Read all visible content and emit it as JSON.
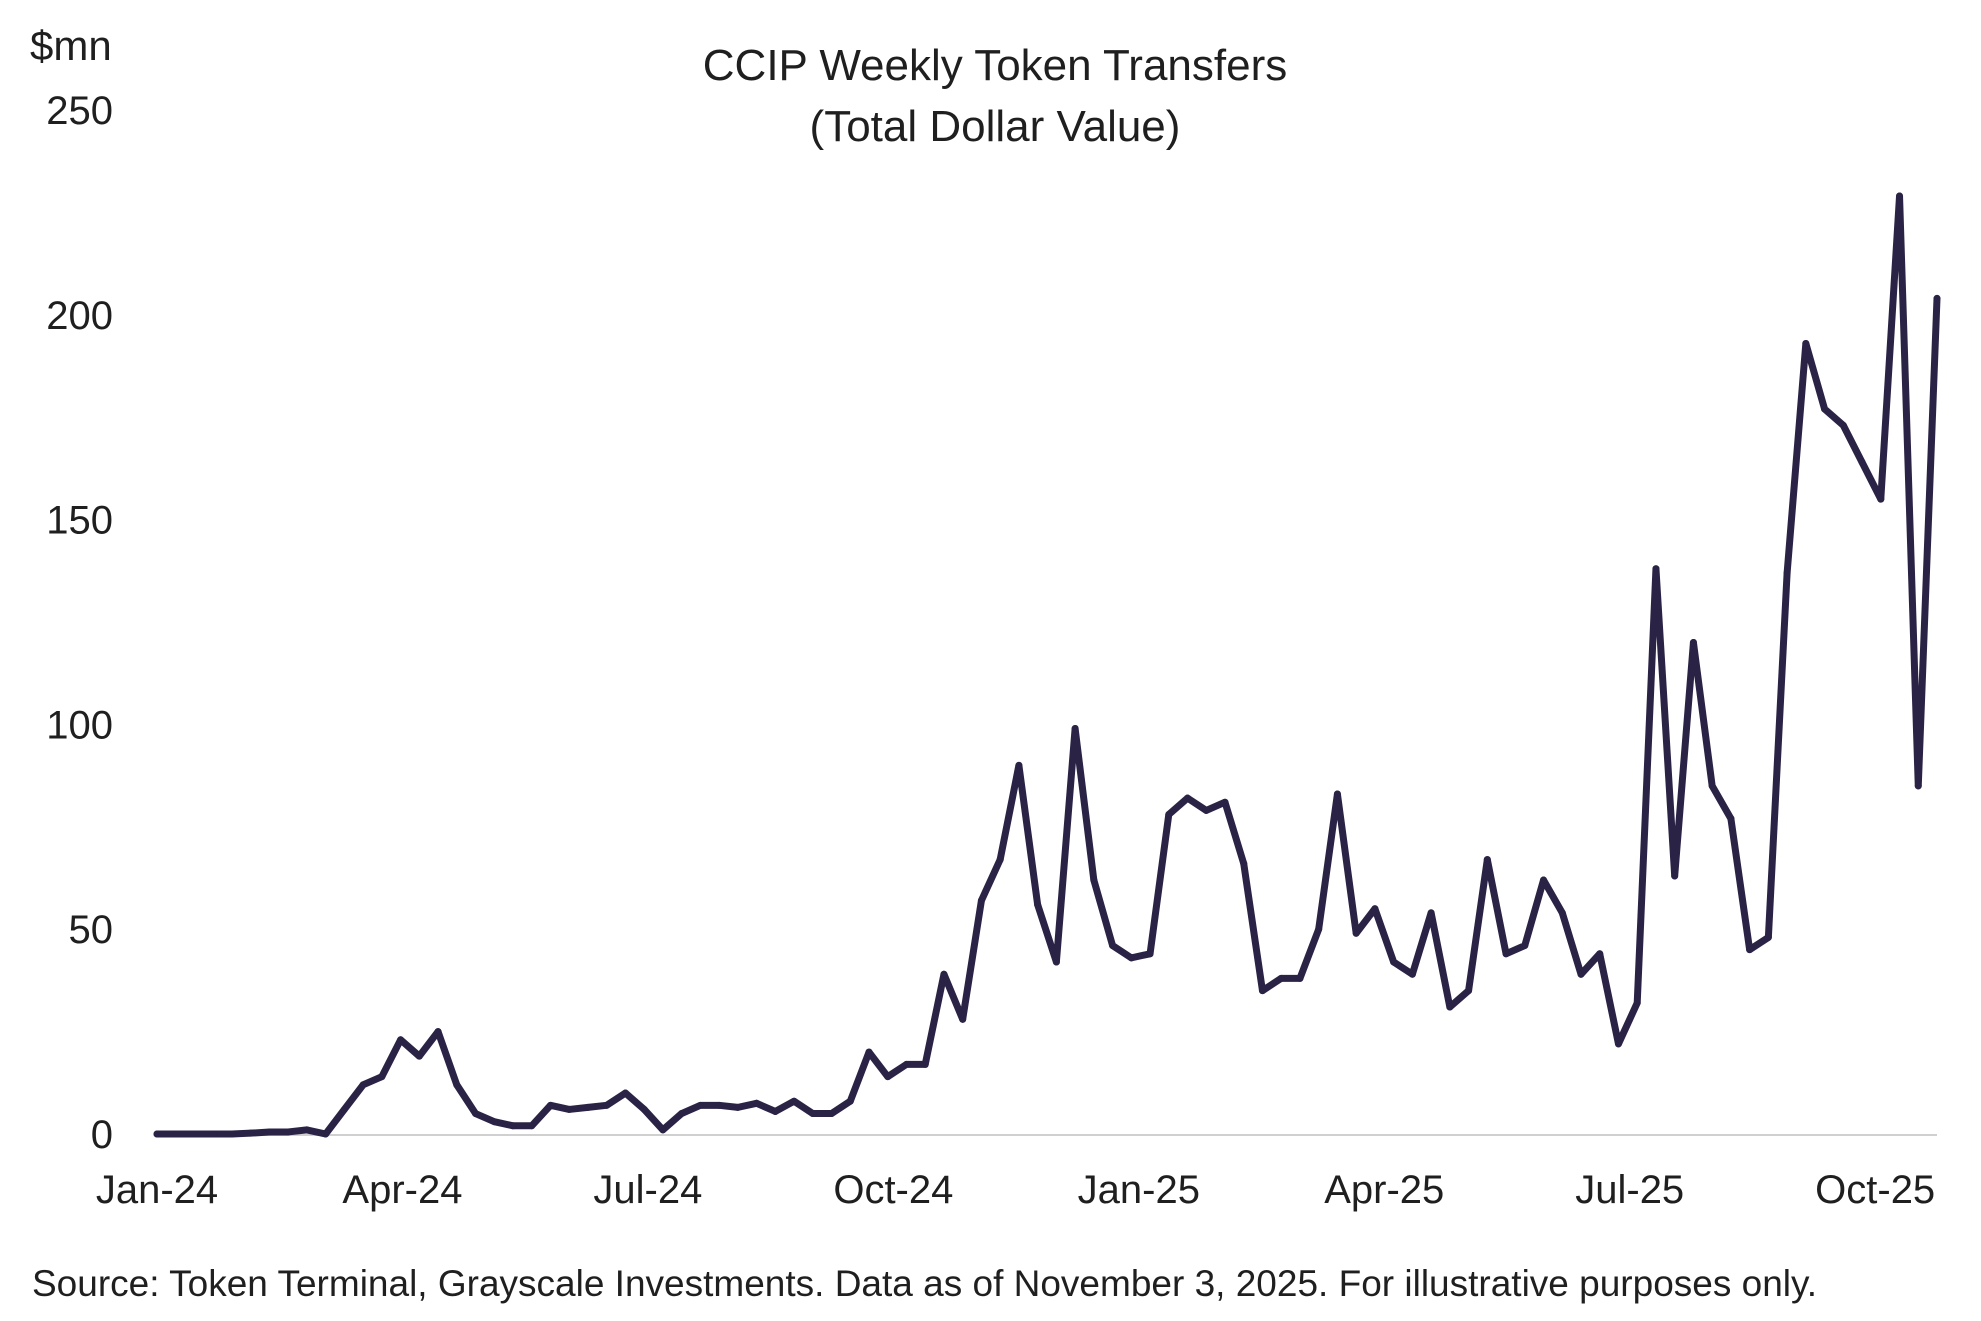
{
  "chart_data": {
    "type": "line",
    "title": "CCIP Weekly Token Transfers",
    "subtitle": "(Total Dollar Value)",
    "y_unit_label": "$mn",
    "xlabel": "",
    "ylabel": "",
    "ylim": [
      0,
      250
    ],
    "y_ticks": [
      0,
      50,
      100,
      150,
      200,
      250
    ],
    "x_tick_labels": [
      "Jan-24",
      "Apr-24",
      "Jul-24",
      "Oct-24",
      "Jan-25",
      "Apr-25",
      "Jul-25",
      "Oct-25"
    ],
    "grid": false,
    "legend": "none",
    "line_color": "#2b2345",
    "series": [
      {
        "values": [
          0,
          0,
          0,
          0,
          0,
          0.2,
          0.5,
          0.5,
          1,
          0,
          6,
          12,
          14,
          23,
          19,
          25,
          12,
          5,
          3,
          2,
          2,
          7,
          6,
          6.5,
          7,
          10,
          6,
          1,
          5,
          7,
          7,
          6.5,
          7.5,
          5.5,
          8,
          5,
          5,
          8,
          20,
          14,
          17,
          17,
          39,
          28,
          57,
          67,
          90,
          56,
          42,
          99,
          62,
          46,
          43,
          44,
          78,
          82,
          79,
          81,
          66,
          35,
          38,
          38,
          50,
          83,
          49,
          55,
          42,
          39,
          54,
          31,
          35,
          67,
          44,
          46,
          62,
          54,
          39,
          44,
          22,
          32,
          138,
          63,
          120,
          85,
          77,
          45,
          48,
          137,
          193,
          177,
          173,
          164,
          155,
          229,
          85,
          204
        ]
      }
    ],
    "source_note": "Source: Token Terminal, Grayscale Investments. Data as of November 3, 2025. For illustrative purposes only."
  }
}
